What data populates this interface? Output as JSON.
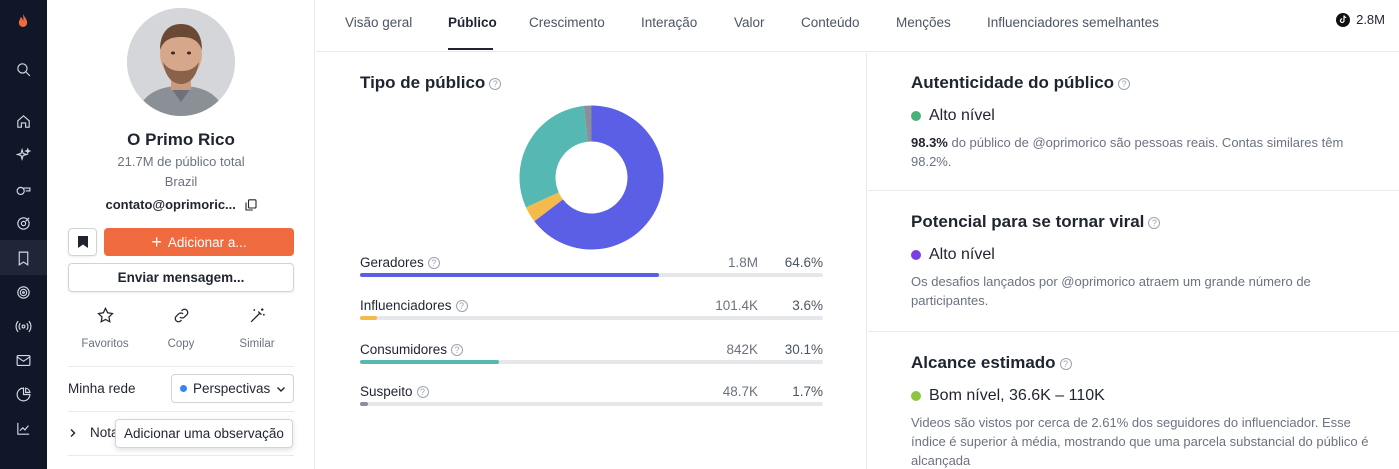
{
  "profile": {
    "name": "O Primo Rico",
    "audience_total": "21.7M de público total",
    "country": "Brazil",
    "email": "contato@oprimoric...",
    "add_button": "Adicionar a...",
    "message_button": "Enviar mensagem...",
    "actions": [
      {
        "label": "Favoritos",
        "icon": "star-icon"
      },
      {
        "label": "Copy",
        "icon": "link-icon"
      },
      {
        "label": "Similar",
        "icon": "magic-wand-icon"
      }
    ],
    "network_label": "Minha rede",
    "network_value": "Perspectivas",
    "notes_label": "Nota",
    "notes_tooltip": "Adicionar uma observação"
  },
  "tabs": [
    {
      "label": "Visão geral"
    },
    {
      "label": "Público"
    },
    {
      "label": "Crescimento"
    },
    {
      "label": "Interação"
    },
    {
      "label": "Valor"
    },
    {
      "label": "Conteúdo"
    },
    {
      "label": "Menções"
    },
    {
      "label": "Influenciadores semelhantes"
    }
  ],
  "active_tab": "Público",
  "followers": "2.8M",
  "audience_type": {
    "title": "Tipo de público",
    "rows": [
      {
        "label": "Geradores",
        "count": "1.8M",
        "pct": "64.6%",
        "value": 64.6,
        "color": "#5b5fe6"
      },
      {
        "label": "Influenciadores",
        "count": "101.4K",
        "pct": "3.6%",
        "value": 3.6,
        "color": "#f4bb4a"
      },
      {
        "label": "Consumidores",
        "count": "842K",
        "pct": "30.1%",
        "value": 30.1,
        "color": "#55b8b3"
      },
      {
        "label": "Suspeito",
        "count": "48.7K",
        "pct": "1.7%",
        "value": 1.7,
        "color": "#8a8f9c"
      }
    ]
  },
  "cards": {
    "authenticity": {
      "title": "Autenticidade do público",
      "level": "Alto nível",
      "color": "#4cb07a",
      "desc_strong": "98.3%",
      "desc_rest": " do público de @oprimorico são pessoas reais. Contas similares têm 98.2%."
    },
    "viral": {
      "title": "Potencial para se tornar viral",
      "level": "Alto nível",
      "color": "#7b3fe4",
      "desc": "Os desafios lançados por @oprimorico atraem um grande número de participantes."
    },
    "reach": {
      "title": "Alcance estimado",
      "level": "Bom nível, 36.6K – 110K",
      "color": "#8cc63f",
      "desc": "Videos são vistos por cerca de 2.61% dos seguidores do influenciador. Esse índice é superior à média, mostrando que uma parcela substancial do público é alcançada"
    }
  }
}
